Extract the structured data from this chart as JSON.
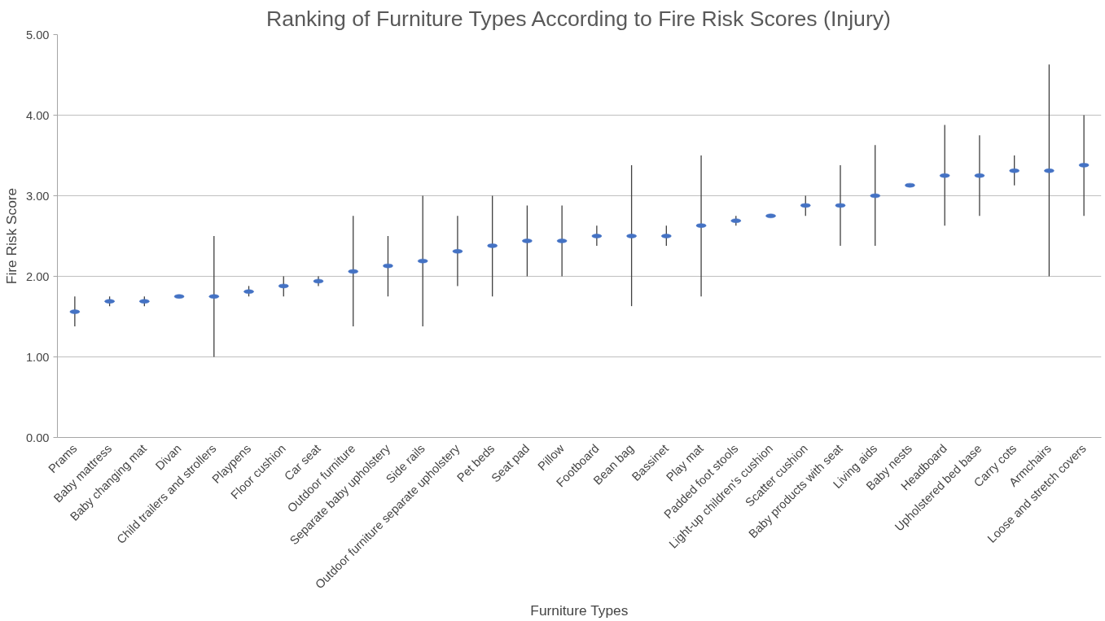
{
  "chart_data": {
    "type": "scatter",
    "title": "Ranking of Furniture Types According to Fire Risk Scores (Injury)",
    "xlabel": "Furniture Types",
    "ylabel": "Fire Risk Score",
    "categories": [
      "Prams",
      "Baby mattress",
      "Baby changing mat",
      "Divan",
      "Child trailers and strollers",
      "Playpens",
      "Floor cushion",
      "Car seat",
      "Outdoor furniture",
      "Separate baby upholstery",
      "Side rails",
      "Outdoor furniture separate upholstery",
      "Pet beds",
      "Seat pad",
      "Pillow",
      "Footboard",
      "Bean bag",
      "Bassinet",
      "Play mat",
      "Padded foot stools",
      "Light-up children's cushion",
      "Scatter cushion",
      "Baby products with seat",
      "Living aids",
      "Baby nests",
      "Headboard",
      "Upholstered bed base",
      "Carry cots",
      "Armchairs",
      "Loose and stretch covers"
    ],
    "series": [
      {
        "color": "#4472c4",
        "values": [
          1.56,
          1.69,
          1.69,
          1.75,
          1.75,
          1.81,
          1.88,
          1.94,
          2.06,
          2.13,
          2.19,
          2.31,
          2.38,
          2.44,
          2.44,
          2.5,
          2.5,
          2.5,
          2.63,
          2.69,
          2.75,
          2.88,
          2.88,
          3.0,
          3.13,
          3.25,
          3.25,
          3.31,
          3.31,
          3.38
        ],
        "errors": [
          [
            1.38,
            1.75
          ],
          [
            1.63,
            1.75
          ],
          [
            1.63,
            1.75
          ],
          null,
          [
            1.0,
            2.5
          ],
          [
            1.75,
            1.88
          ],
          [
            1.75,
            2.0
          ],
          [
            1.88,
            2.0
          ],
          [
            1.38,
            2.75
          ],
          [
            1.75,
            2.5
          ],
          [
            1.38,
            3.0
          ],
          [
            1.88,
            2.75
          ],
          [
            1.75,
            3.0
          ],
          [
            2.0,
            2.88
          ],
          [
            2.0,
            2.88
          ],
          [
            2.38,
            2.63
          ],
          [
            1.63,
            3.38
          ],
          [
            2.38,
            2.63
          ],
          [
            1.75,
            3.5
          ],
          [
            2.63,
            2.75
          ],
          null,
          [
            2.75,
            3.0
          ],
          [
            2.38,
            3.38
          ],
          [
            2.38,
            3.63
          ],
          null,
          [
            2.63,
            3.88
          ],
          [
            2.75,
            3.75
          ],
          [
            3.13,
            3.5
          ],
          [
            2.0,
            4.63
          ],
          [
            2.75,
            4.0
          ]
        ]
      }
    ],
    "ylim": [
      0,
      5
    ],
    "yticks": [
      {
        "value": 0,
        "label": "0.00"
      },
      {
        "value": 1,
        "label": "1.00"
      },
      {
        "value": 2,
        "label": "2.00"
      },
      {
        "value": 3,
        "label": "3.00"
      },
      {
        "value": 4,
        "label": "4.00"
      },
      {
        "value": 5,
        "label": "5.00"
      }
    ],
    "grid": "y"
  }
}
